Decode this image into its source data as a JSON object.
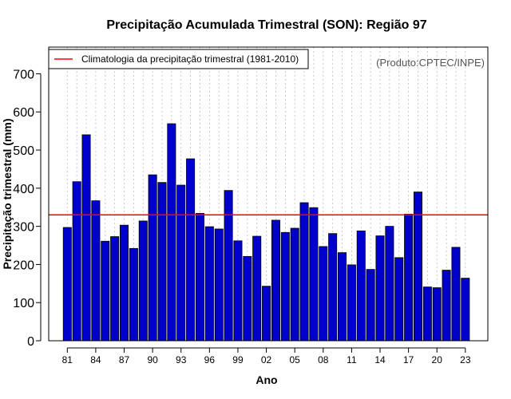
{
  "chart_data": {
    "type": "bar",
    "title": "Precipitação Acumulada Trimestral (SON): Região 97",
    "xlabel": "Ano",
    "ylabel": "Precipitação trimestral (mm)",
    "credit": "(Produto:CPTEC/INPE)",
    "ylim": [
      0,
      770
    ],
    "yticks": [
      0,
      100,
      200,
      300,
      400,
      500,
      600,
      700
    ],
    "xtick_labels": [
      "81",
      "84",
      "87",
      "90",
      "93",
      "96",
      "99",
      "02",
      "05",
      "08",
      "11",
      "14",
      "17",
      "20",
      "23"
    ],
    "categories": [
      "1981",
      "1982",
      "1983",
      "1984",
      "1985",
      "1986",
      "1987",
      "1988",
      "1989",
      "1990",
      "1991",
      "1992",
      "1993",
      "1994",
      "1995",
      "1996",
      "1997",
      "1998",
      "1999",
      "2000",
      "2001",
      "2002",
      "2003",
      "2004",
      "2005",
      "2006",
      "2007",
      "2008",
      "2009",
      "2010",
      "2011",
      "2012",
      "2013",
      "2014",
      "2015",
      "2016",
      "2017",
      "2018",
      "2019",
      "2020",
      "2021",
      "2022",
      "2023"
    ],
    "values": [
      297,
      417,
      540,
      367,
      261,
      273,
      303,
      242,
      314,
      435,
      415,
      569,
      408,
      477,
      334,
      299,
      293,
      394,
      262,
      221,
      274,
      143,
      316,
      284,
      295,
      362,
      349,
      247,
      281,
      231,
      199,
      288,
      187,
      275,
      300,
      218,
      332,
      390,
      141,
      139,
      185,
      245,
      164
    ],
    "climatology": {
      "label": "Climatologia da precipitação trimestral (1981-2010)",
      "value": 330,
      "color": "#ff0000"
    },
    "bar_color": "#0000cc",
    "grid": true,
    "legend_position": "top-left"
  }
}
